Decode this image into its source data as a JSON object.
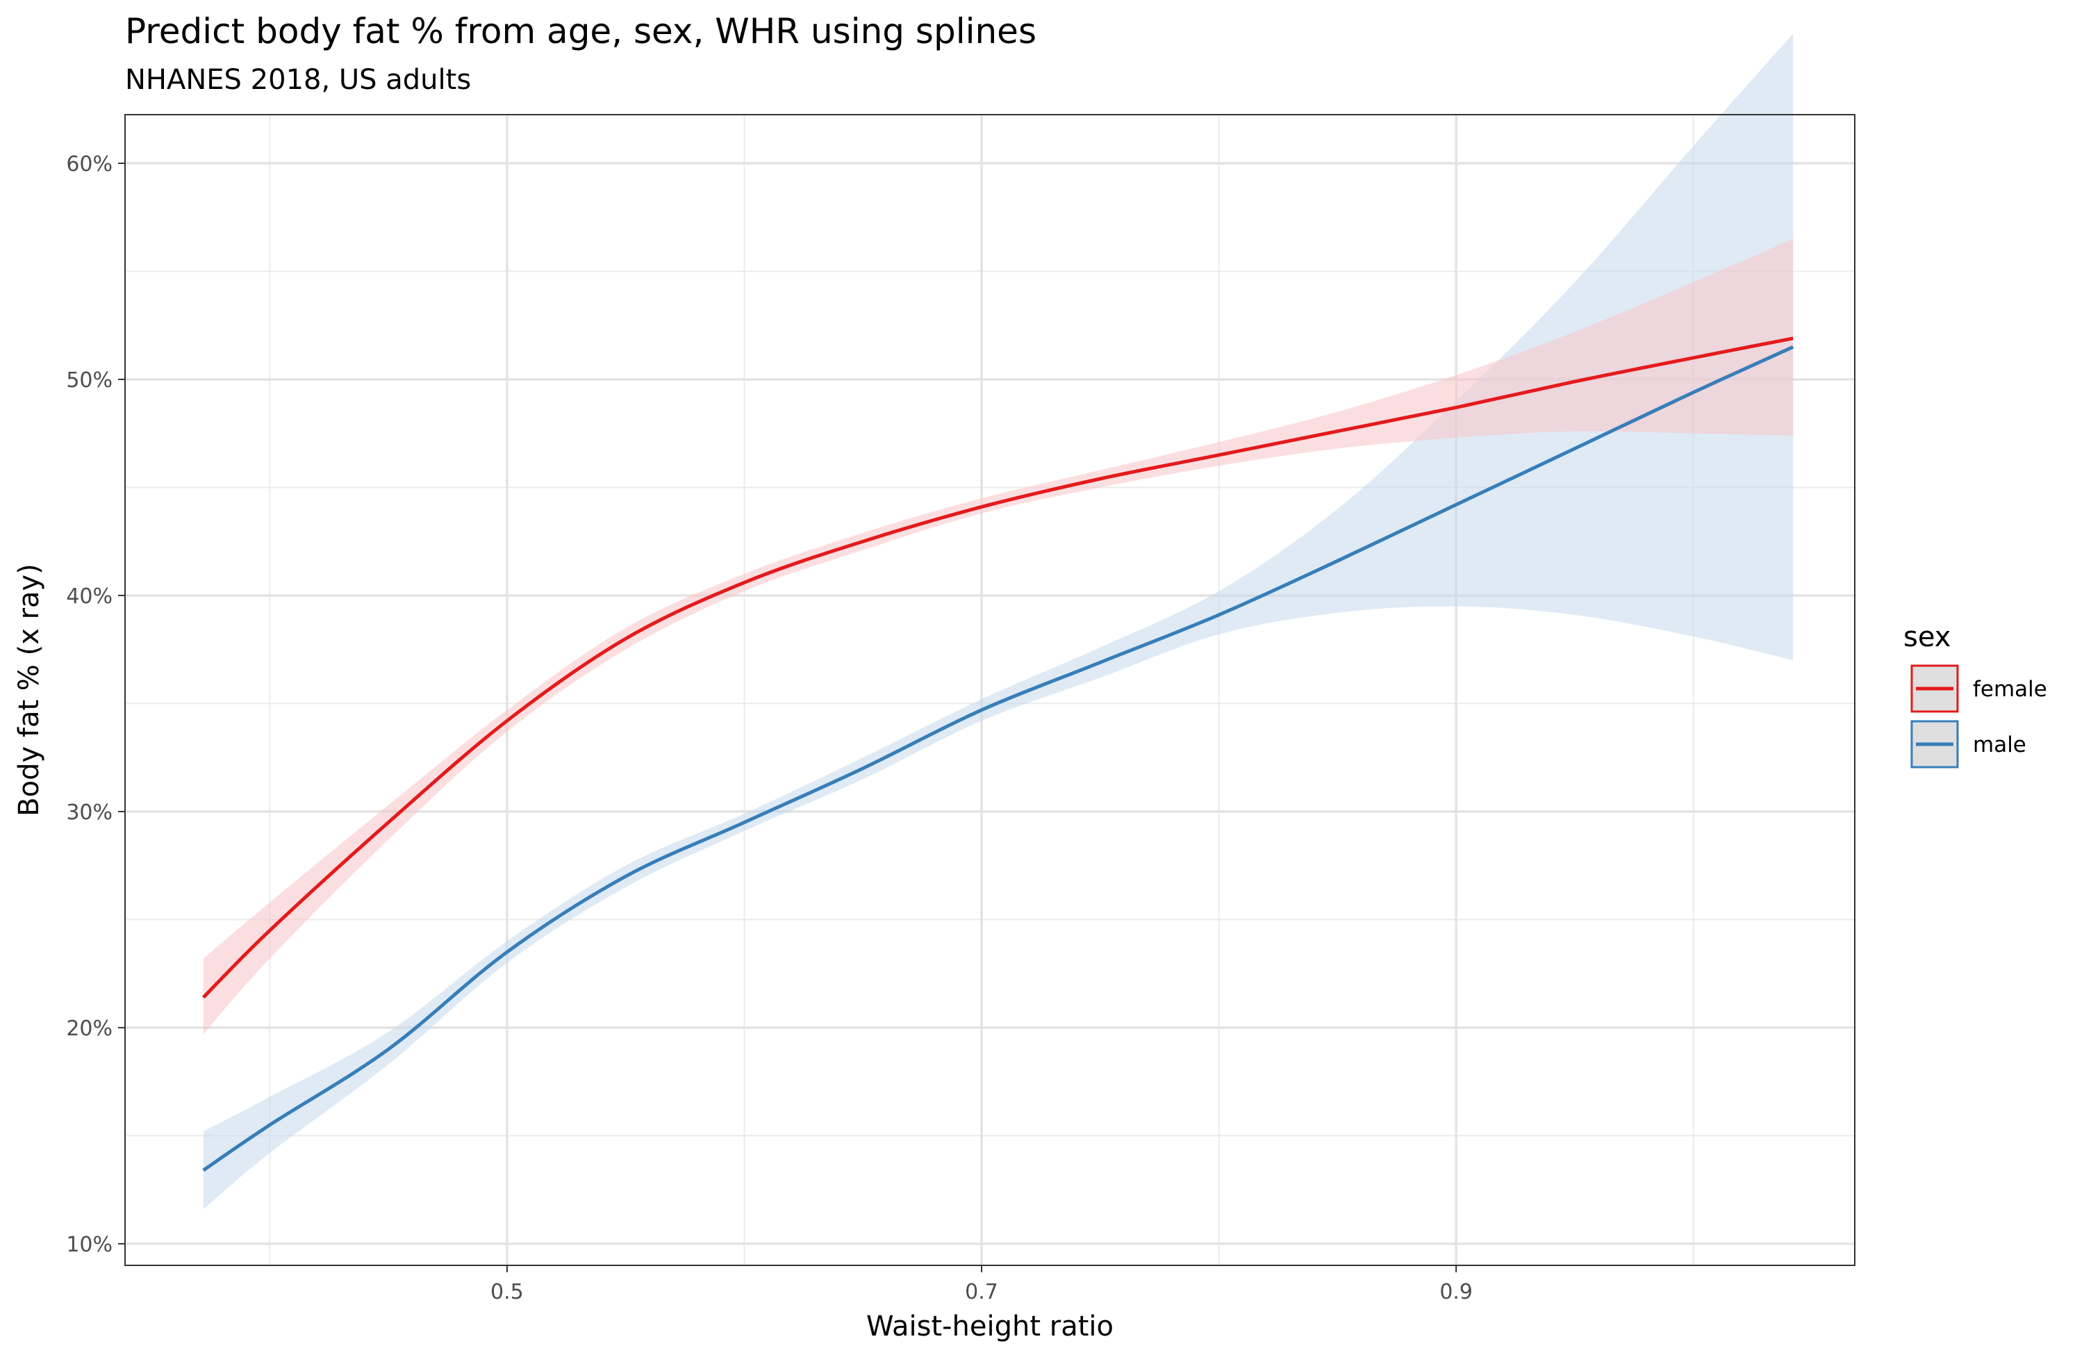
{
  "chart_data": {
    "type": "line",
    "title": "Predict body fat % from age, sex, WHR using splines",
    "subtitle": "NHANES 2018, US adults",
    "xlabel": "Waist-height ratio",
    "ylabel": "Body fat % (x ray)",
    "xlim": [
      0.339,
      1.068
    ],
    "ylim": [
      0.09,
      0.6225
    ],
    "x_ticks": [
      0.5,
      0.7,
      0.9
    ],
    "x_tick_labels": [
      "0.5",
      "0.7",
      "0.9"
    ],
    "x_minor_ticks": [
      0.4,
      0.6,
      0.8,
      1.0
    ],
    "y_ticks": [
      0.1,
      0.2,
      0.3,
      0.4,
      0.5,
      0.6
    ],
    "y_tick_labels": [
      "10%",
      "20%",
      "30%",
      "40%",
      "50%",
      "60%"
    ],
    "y_minor_ticks": [
      0.15,
      0.25,
      0.35,
      0.45,
      0.55,
      0.65
    ],
    "grid": true,
    "legend": {
      "title": "sex",
      "position": "right"
    },
    "series": [
      {
        "name": "female",
        "color": "#e41a1c",
        "x": [
          0.372,
          0.4,
          0.45,
          0.5,
          0.55,
          0.6,
          0.65,
          0.7,
          0.75,
          0.8,
          0.85,
          0.9,
          0.95,
          1.0,
          1.042
        ],
        "y": [
          0.214,
          0.245,
          0.295,
          0.342,
          0.38,
          0.406,
          0.425,
          0.441,
          0.454,
          0.465,
          0.476,
          0.487,
          0.499,
          0.51,
          0.519
        ],
        "lower": [
          0.197,
          0.232,
          0.287,
          0.337,
          0.375,
          0.402,
          0.421,
          0.438,
          0.45,
          0.46,
          0.468,
          0.473,
          0.476,
          0.475,
          0.474
        ],
        "upper": [
          0.232,
          0.258,
          0.303,
          0.347,
          0.385,
          0.41,
          0.429,
          0.445,
          0.458,
          0.471,
          0.485,
          0.502,
          0.522,
          0.545,
          0.565
        ]
      },
      {
        "name": "male",
        "color": "#377eb8",
        "x": [
          0.372,
          0.4,
          0.45,
          0.5,
          0.55,
          0.6,
          0.65,
          0.7,
          0.75,
          0.8,
          0.85,
          0.9,
          0.95,
          1.0,
          1.042
        ],
        "y": [
          0.134,
          0.155,
          0.19,
          0.235,
          0.27,
          0.295,
          0.32,
          0.347,
          0.369,
          0.391,
          0.416,
          0.442,
          0.468,
          0.494,
          0.515
        ],
        "lower": [
          0.116,
          0.142,
          0.183,
          0.23,
          0.265,
          0.291,
          0.315,
          0.342,
          0.362,
          0.382,
          0.392,
          0.395,
          0.391,
          0.381,
          0.37
        ],
        "upper": [
          0.152,
          0.168,
          0.198,
          0.24,
          0.275,
          0.299,
          0.325,
          0.352,
          0.376,
          0.402,
          0.44,
          0.49,
          0.545,
          0.608,
          0.66
        ]
      }
    ]
  }
}
